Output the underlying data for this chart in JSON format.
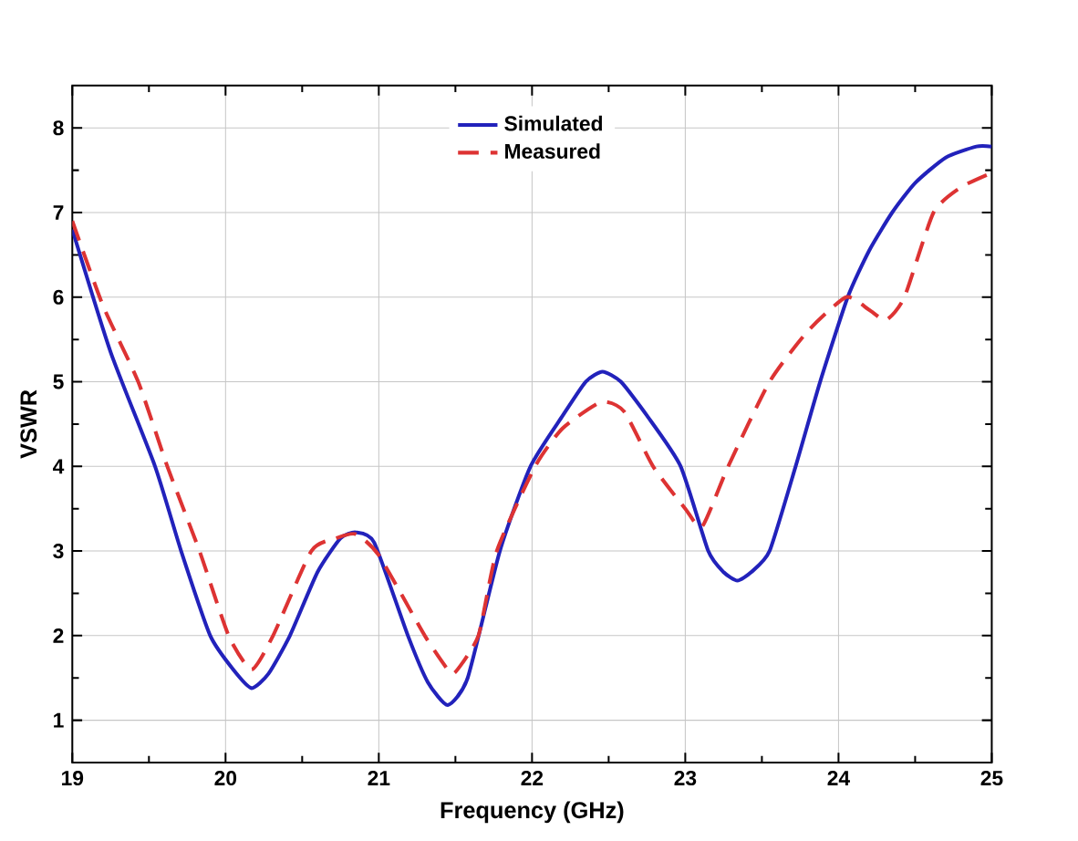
{
  "chart_data": {
    "type": "line",
    "xlabel": "Frequency (GHz)",
    "ylabel": "VSWR",
    "xlim": [
      19,
      25
    ],
    "ylim": [
      0.5,
      8.5
    ],
    "xticks": [
      19,
      20,
      21,
      22,
      23,
      24,
      25
    ],
    "yticks": [
      1,
      2,
      3,
      4,
      5,
      6,
      7,
      8
    ],
    "grid": true,
    "legend": "top",
    "marker": "none",
    "series": [
      {
        "name": "Simulated",
        "color": "#2222bb",
        "line_style": "solid",
        "x": [
          19.0,
          19.25,
          19.54,
          19.71,
          19.9,
          20.05,
          20.17,
          20.28,
          20.42,
          20.6,
          20.75,
          20.85,
          20.97,
          21.19,
          21.32,
          21.45,
          21.58,
          21.79,
          21.99,
          22.2,
          22.35,
          22.46,
          22.58,
          22.75,
          22.97,
          23.15,
          23.25,
          23.34,
          23.43,
          23.55,
          23.72,
          23.88,
          24.06,
          24.2,
          24.35,
          24.5,
          24.7,
          24.9,
          25.0
        ],
        "values": [
          6.8,
          5.35,
          4.0,
          3.0,
          2.0,
          1.6,
          1.38,
          1.55,
          2.0,
          2.75,
          3.15,
          3.22,
          3.1,
          2.0,
          1.45,
          1.18,
          1.5,
          3.0,
          4.0,
          4.6,
          5.0,
          5.12,
          5.0,
          4.6,
          4.0,
          3.0,
          2.75,
          2.65,
          2.75,
          3.0,
          4.0,
          5.0,
          6.0,
          6.55,
          7.0,
          7.35,
          7.65,
          7.78,
          7.78
        ]
      },
      {
        "name": "Measured",
        "color": "#dd3333",
        "line_style": "dashed",
        "x": [
          19.0,
          19.2,
          19.43,
          19.62,
          19.83,
          20.02,
          20.17,
          20.31,
          20.56,
          20.72,
          20.85,
          21.0,
          21.3,
          21.45,
          21.5,
          21.65,
          21.77,
          22.02,
          22.2,
          22.45,
          22.6,
          22.79,
          23.0,
          23.11,
          23.28,
          23.55,
          23.8,
          24.05,
          24.2,
          24.31,
          24.43,
          24.62,
          24.8,
          25.0
        ],
        "values": [
          6.9,
          5.9,
          5.0,
          4.0,
          3.0,
          2.0,
          1.6,
          2.0,
          3.0,
          3.15,
          3.2,
          2.95,
          2.0,
          1.6,
          1.57,
          2.0,
          3.0,
          4.0,
          4.45,
          4.76,
          4.65,
          4.0,
          3.5,
          3.29,
          4.0,
          5.0,
          5.6,
          6.0,
          5.85,
          5.73,
          6.0,
          7.0,
          7.3,
          7.47
        ]
      }
    ]
  }
}
